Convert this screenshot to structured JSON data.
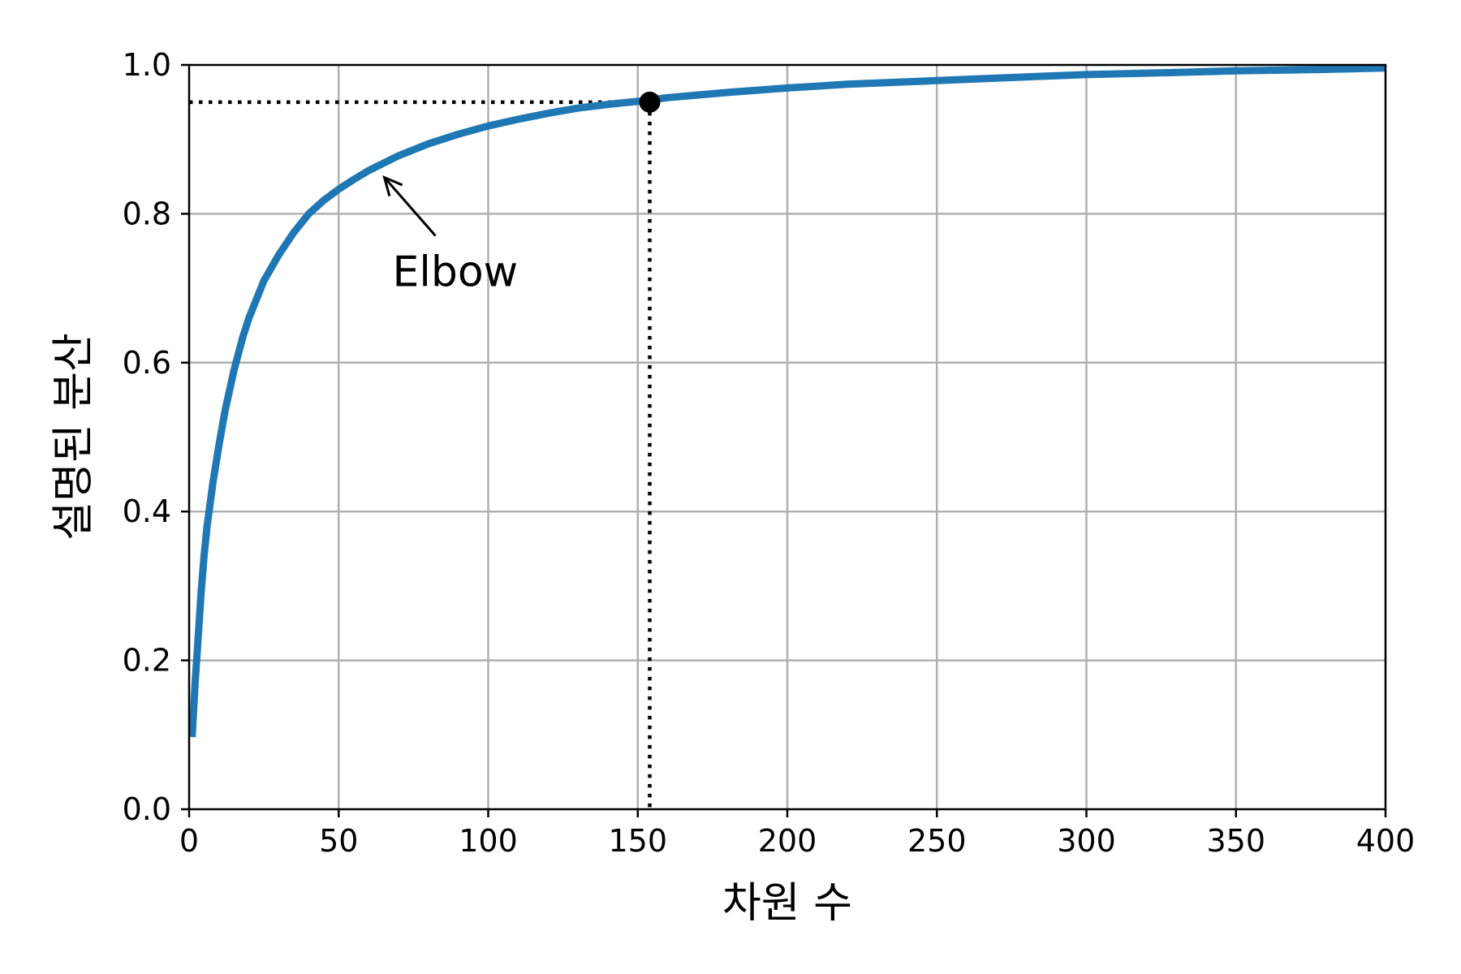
{
  "chart_data": {
    "type": "line",
    "xlabel": "차원 수",
    "ylabel": "설명된 분산",
    "xlim": [
      0,
      400
    ],
    "ylim": [
      0.0,
      1.0
    ],
    "xticks": [
      0,
      50,
      100,
      150,
      200,
      250,
      300,
      350,
      400
    ],
    "yticks": [
      0.0,
      0.2,
      0.4,
      0.6,
      0.8,
      1.0
    ],
    "xtick_labels": [
      "0",
      "50",
      "100",
      "150",
      "200",
      "250",
      "300",
      "350",
      "400"
    ],
    "ytick_labels": [
      "0.0",
      "0.2",
      "0.4",
      "0.6",
      "0.8",
      "1.0"
    ],
    "grid": true,
    "series": [
      {
        "color": "#1f77b4",
        "x": [
          1,
          2,
          3,
          4,
          5,
          6,
          8,
          10,
          12,
          15,
          18,
          20,
          25,
          30,
          35,
          40,
          45,
          50,
          55,
          60,
          70,
          80,
          90,
          100,
          110,
          120,
          130,
          140,
          150,
          154,
          160,
          180,
          200,
          220,
          250,
          280,
          300,
          330,
          350,
          380,
          400
        ],
        "y": [
          0.097,
          0.17,
          0.23,
          0.29,
          0.34,
          0.38,
          0.44,
          0.49,
          0.535,
          0.59,
          0.635,
          0.66,
          0.71,
          0.745,
          0.775,
          0.8,
          0.818,
          0.833,
          0.846,
          0.858,
          0.878,
          0.894,
          0.907,
          0.918,
          0.927,
          0.935,
          0.942,
          0.947,
          0.951,
          0.953,
          0.956,
          0.963,
          0.969,
          0.974,
          0.979,
          0.984,
          0.987,
          0.99,
          0.992,
          0.994,
          0.996
        ]
      }
    ],
    "threshold": {
      "x": 154,
      "y": 0.95
    },
    "annotation": {
      "text": "Elbow",
      "point": {
        "x": 65,
        "y": 0.85
      }
    }
  }
}
